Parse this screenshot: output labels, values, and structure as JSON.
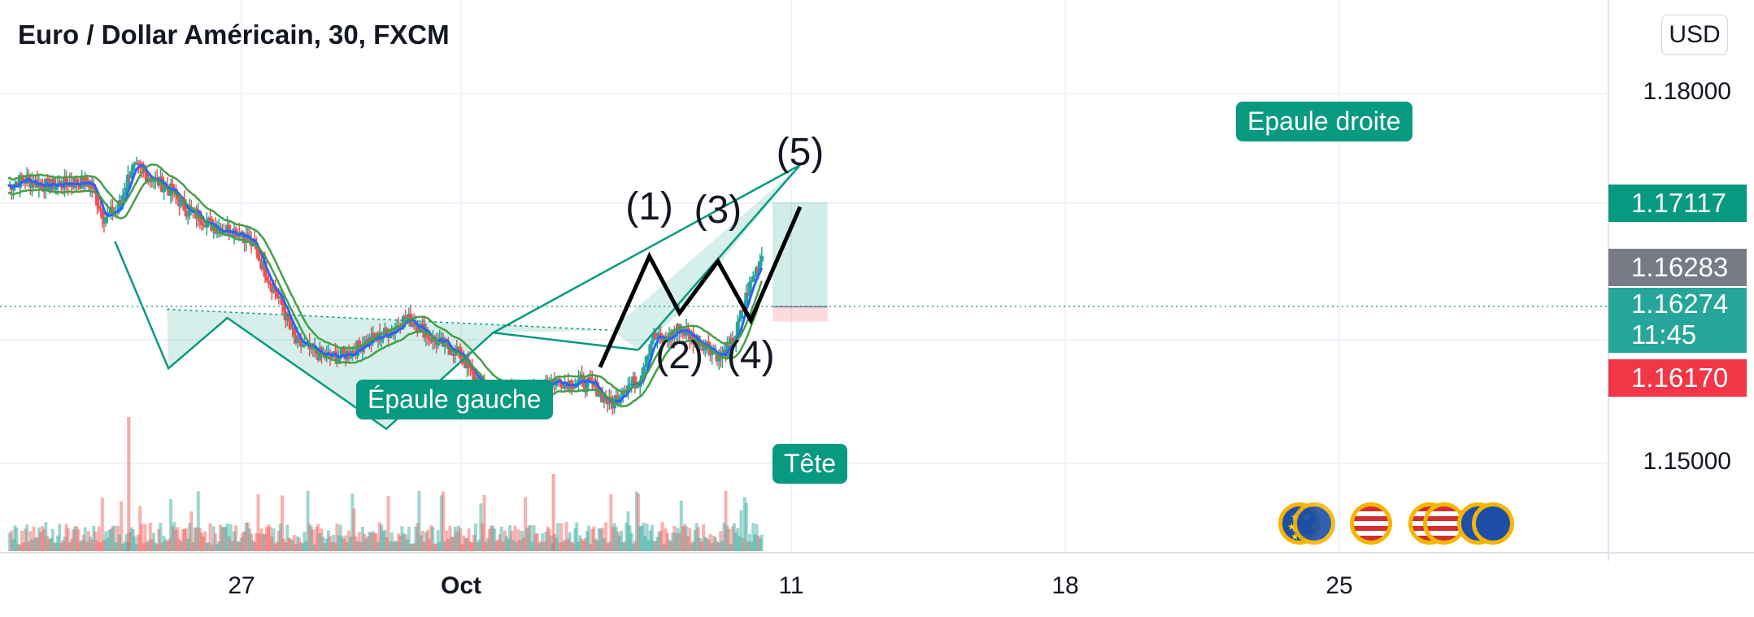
{
  "header": {
    "title": "Euro / Dollar Américain, 30, FXCM",
    "currency": "USD"
  },
  "colors": {
    "up": "#26a69a",
    "down": "#ef5350",
    "pattern": "#089981",
    "last_price": "#26a69a",
    "bid": "#f23645",
    "ask_tag": "#089981",
    "mid_tag": "#787b86"
  },
  "chart_data": {
    "type": "line",
    "title": "Euro / Dollar Américain, 30, FXCM",
    "x_ticks": [
      "27",
      "Oct",
      "11",
      "18",
      "25"
    ],
    "y_ticks": [
      "1.18000",
      "1.15000"
    ],
    "ylim": [
      1.1445,
      1.1852
    ],
    "price_labels": {
      "target": "1.17117",
      "mid": "1.16283",
      "last": "1.16274",
      "countdown": "11:45",
      "bid": "1.16170"
    },
    "annotations": {
      "left_shoulder": "Épaule gauche",
      "head": "Tête",
      "right_shoulder": "Epaule droite",
      "waves": [
        "(1)",
        "(2)",
        "(3)",
        "(4)",
        "(5)"
      ]
    },
    "pattern_points": {
      "left_shoulder_start": {
        "d": 0.39,
        "p": 1.168
      },
      "left_shoulder_low": {
        "d": 0.585,
        "p": 1.1577
      },
      "neck_left": {
        "d": 0.8,
        "p": 1.1618
      },
      "head_low": {
        "d": 1.38,
        "p": 1.1528
      },
      "neck_right": {
        "d": 1.77,
        "p": 1.1606
      },
      "right_shoulder_peak": {
        "d": 2.89,
        "p": 1.1742
      }
    },
    "neckline": [
      {
        "d": 0.58,
        "p": 1.1625
      },
      {
        "d": 2.2,
        "p": 1.1608
      }
    ],
    "elliott_waves": [
      {
        "d": 2.16,
        "p": 1.1578
      },
      {
        "d": 2.34,
        "p": 1.1668
      },
      {
        "d": 2.45,
        "p": 1.1622
      },
      {
        "d": 2.59,
        "p": 1.1664
      },
      {
        "d": 2.71,
        "p": 1.1616
      },
      {
        "d": 2.89,
        "p": 1.1708
      }
    ],
    "wave_label_points": [
      {
        "d": 2.34,
        "p": 1.1708
      },
      {
        "d": 2.45,
        "p": 1.1587
      },
      {
        "d": 2.59,
        "p": 1.1705
      },
      {
        "d": 2.71,
        "p": 1.1587
      },
      {
        "d": 2.89,
        "p": 1.1752
      }
    ],
    "position_box": {
      "d_start": 2.79,
      "d_end": 2.99,
      "entry": 1.1627,
      "target": 1.1712,
      "stop": 1.1615
    },
    "price_series": {
      "x_days": [
        0.0,
        0.05,
        0.1,
        0.15,
        0.2,
        0.25,
        0.3,
        0.35,
        0.4,
        0.45,
        0.5,
        0.55,
        0.6,
        0.65,
        0.7,
        0.75,
        0.8,
        0.85,
        0.9,
        0.95,
        1.0,
        1.05,
        1.1,
        1.15,
        1.2,
        1.25,
        1.3,
        1.35,
        1.4,
        1.45,
        1.5,
        1.55,
        1.6,
        1.65,
        1.7,
        1.75,
        1.8,
        1.85,
        1.9,
        1.95,
        2.0,
        2.05,
        2.1,
        2.15,
        2.2,
        2.25,
        2.3,
        2.35,
        2.4,
        2.45,
        2.5,
        2.55,
        2.6,
        2.65,
        2.7,
        2.75
      ],
      "close": [
        1.1725,
        1.173,
        1.1728,
        1.1725,
        1.1727,
        1.1728,
        1.1727,
        1.17,
        1.1705,
        1.174,
        1.1735,
        1.1728,
        1.172,
        1.1706,
        1.17,
        1.1692,
        1.169,
        1.1688,
        1.1675,
        1.165,
        1.1628,
        1.1598,
        1.1592,
        1.1587,
        1.1586,
        1.159,
        1.1598,
        1.1602,
        1.1608,
        1.1618,
        1.1612,
        1.16,
        1.1595,
        1.1588,
        1.157,
        1.156,
        1.1558,
        1.1555,
        1.1556,
        1.1565,
        1.1567,
        1.1566,
        1.1566,
        1.156,
        1.1547,
        1.1562,
        1.1567,
        1.1602,
        1.16,
        1.161,
        1.1602,
        1.1596,
        1.1586,
        1.16,
        1.164,
        1.1668
      ]
    },
    "volume_hint": "per-bar volume histogram along the bottom"
  }
}
